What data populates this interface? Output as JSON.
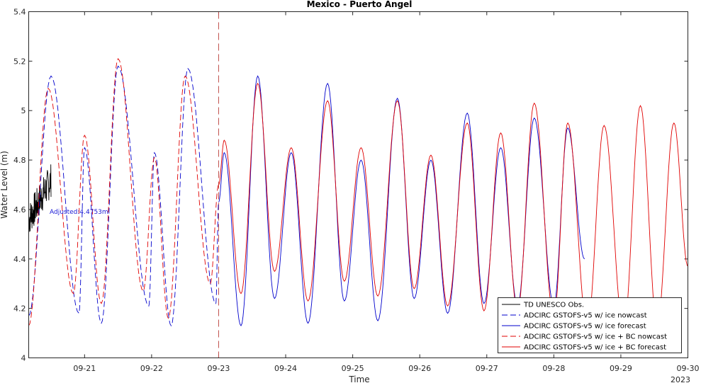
{
  "chart_data": {
    "type": "line",
    "title": "Mexico - Puerto Angel",
    "xlabel": "Time",
    "ylabel": "Water Level (m)",
    "x_ticks": [
      "09-21",
      "09-22",
      "09-23",
      "09-24",
      "09-25",
      "09-26",
      "09-27",
      "09-28",
      "09-29",
      "09-30"
    ],
    "x_year_label": "2023",
    "xlim": [
      "09-20 04:00",
      "09-30 00:00"
    ],
    "ylim": [
      4.0,
      5.4
    ],
    "y_ticks": [
      "4",
      "4.2",
      "4.4",
      "4.6",
      "4.8",
      "5",
      "5.2",
      "5.4"
    ],
    "nowcast_forecast_divider": "09-23 00:00",
    "annotation": "Adjusted:4.4753m",
    "legend_position": "bottom-right",
    "series": [
      {
        "name": "TD UNESCO Obs.",
        "color": "#000000",
        "style": "solid",
        "x_start": "09-20 04:00",
        "x_end": "09-20 12:00",
        "level_range": [
          4.47,
          4.79
        ]
      },
      {
        "name": "ADCIRC GSTOFS-v5 w/ ice nowcast",
        "color": "#0000cc",
        "style": "dashed",
        "extrema": [
          [
            "09-20 04:00",
            4.17
          ],
          [
            "09-20 12:00",
            5.14
          ],
          [
            "09-20 22:00",
            4.18
          ],
          [
            "09-21 00:00",
            4.85
          ],
          [
            "09-21 06:00",
            4.14
          ],
          [
            "09-21 12:00",
            5.18
          ],
          [
            "09-21 23:00",
            4.21
          ],
          [
            "09-22 01:00",
            4.83
          ],
          [
            "09-22 07:00",
            4.13
          ],
          [
            "09-22 13:00",
            5.17
          ],
          [
            "09-22 23:00",
            4.22
          ],
          [
            "09-23 00:00",
            4.63
          ]
        ]
      },
      {
        "name": "ADCIRC GSTOFS-v5 w/ ice forecast",
        "color": "#0000cc",
        "style": "solid",
        "extrema": [
          [
            "09-23 00:00",
            4.63
          ],
          [
            "09-23 02:00",
            4.83
          ],
          [
            "09-23 08:00",
            4.13
          ],
          [
            "09-23 14:00",
            5.14
          ],
          [
            "09-23 20:00",
            4.24
          ],
          [
            "09-24 02:00",
            4.83
          ],
          [
            "09-24 08:00",
            4.14
          ],
          [
            "09-24 15:00",
            5.11
          ],
          [
            "09-24 21:00",
            4.23
          ],
          [
            "09-25 03:00",
            4.8
          ],
          [
            "09-25 09:00",
            4.15
          ],
          [
            "09-25 16:00",
            5.05
          ],
          [
            "09-25 22:00",
            4.24
          ],
          [
            "09-26 04:00",
            4.8
          ],
          [
            "09-26 10:00",
            4.18
          ],
          [
            "09-26 17:00",
            4.99
          ],
          [
            "09-26 23:00",
            4.22
          ],
          [
            "09-27 05:00",
            4.85
          ],
          [
            "09-27 11:00",
            4.21
          ],
          [
            "09-27 17:00",
            4.97
          ],
          [
            "09-28 00:00",
            4.21
          ],
          [
            "09-28 05:00",
            4.93
          ],
          [
            "09-28 11:00",
            4.4
          ]
        ]
      },
      {
        "name": "ADCIRC GSTOFS-v5 w/ ice + BC nowcast",
        "color": "#e00000",
        "style": "dashed",
        "extrema": [
          [
            "09-20 04:00",
            4.13
          ],
          [
            "09-20 11:00",
            5.09
          ],
          [
            "09-20 20:00",
            4.26
          ],
          [
            "09-21 00:00",
            4.9
          ],
          [
            "09-21 06:00",
            4.22
          ],
          [
            "09-21 12:00",
            5.21
          ],
          [
            "09-21 21:00",
            4.27
          ],
          [
            "09-22 01:00",
            4.81
          ],
          [
            "09-22 06:00",
            4.16
          ],
          [
            "09-22 12:00",
            5.14
          ],
          [
            "09-22 21:00",
            4.3
          ],
          [
            "09-23 00:00",
            4.7
          ]
        ]
      },
      {
        "name": "ADCIRC GSTOFS-v5 w/ ice + BC forecast",
        "color": "#e00000",
        "style": "solid",
        "extrema": [
          [
            "09-23 00:00",
            4.7
          ],
          [
            "09-23 02:00",
            4.88
          ],
          [
            "09-23 08:00",
            4.26
          ],
          [
            "09-23 14:00",
            5.11
          ],
          [
            "09-23 20:00",
            4.35
          ],
          [
            "09-24 02:00",
            4.85
          ],
          [
            "09-24 08:00",
            4.23
          ],
          [
            "09-24 15:00",
            5.04
          ],
          [
            "09-24 21:00",
            4.31
          ],
          [
            "09-25 03:00",
            4.85
          ],
          [
            "09-25 09:00",
            4.25
          ],
          [
            "09-25 16:00",
            5.04
          ],
          [
            "09-25 22:00",
            4.28
          ],
          [
            "09-26 04:00",
            4.82
          ],
          [
            "09-26 10:00",
            4.21
          ],
          [
            "09-26 17:00",
            4.95
          ],
          [
            "09-26 23:00",
            4.19
          ],
          [
            "09-27 05:00",
            4.91
          ],
          [
            "09-27 11:00",
            4.19
          ],
          [
            "09-27 17:00",
            5.03
          ],
          [
            "09-28 00:00",
            4.16
          ],
          [
            "09-28 05:00",
            4.95
          ],
          [
            "09-28 12:00",
            4.12
          ],
          [
            "09-28 18:00",
            4.94
          ],
          [
            "09-29 01:00",
            4.11
          ],
          [
            "09-29 07:00",
            5.02
          ],
          [
            "09-29 13:00",
            4.13
          ],
          [
            "09-29 19:00",
            4.95
          ],
          [
            "09-30 00:00",
            4.37
          ]
        ]
      }
    ]
  }
}
